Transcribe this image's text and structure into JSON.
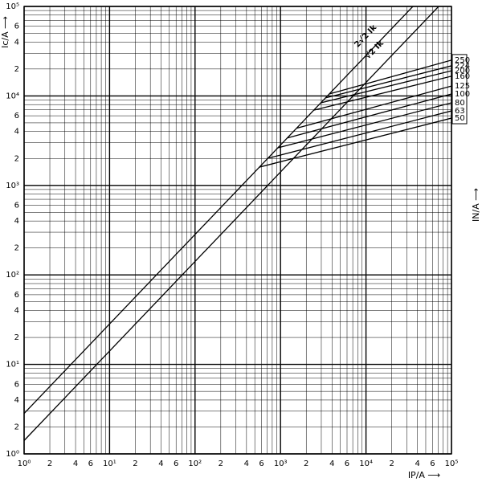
{
  "chart_data": {
    "type": "line",
    "log_x": true,
    "log_y": true,
    "grid": true,
    "minor_grid": true,
    "xlabel": "IP/A ⟶",
    "ylabel": "Ic/A ⟶",
    "y2label": "IN/A ⟶",
    "xlim": [
      1,
      100000
    ],
    "ylim": [
      1,
      100000
    ],
    "xticks": [
      {
        "value": 1,
        "label": "10⁰"
      },
      2,
      4,
      6,
      {
        "value": 10,
        "label": "10¹"
      },
      {
        "value": 20,
        "label": "2"
      },
      {
        "value": 40,
        "label": "4"
      },
      {
        "value": 60,
        "label": "6"
      },
      {
        "value": 100,
        "label": "10²"
      },
      {
        "value": 200,
        "label": "2"
      },
      {
        "value": 400,
        "label": "4"
      },
      {
        "value": 600,
        "label": "6"
      },
      {
        "value": 1000,
        "label": "10³"
      },
      {
        "value": 2000,
        "label": "2"
      },
      {
        "value": 4000,
        "label": "4"
      },
      {
        "value": 6000,
        "label": "6"
      },
      {
        "value": 10000,
        "label": "10⁴"
      },
      {
        "value": 20000,
        "label": "2"
      },
      {
        "value": 40000,
        "label": "4"
      },
      {
        "value": 60000,
        "label": "6"
      },
      {
        "value": 100000,
        "label": "10⁵"
      }
    ],
    "yticks": [
      {
        "value": 1,
        "label": "10⁰"
      },
      2,
      4,
      6,
      {
        "value": 10,
        "label": "10¹"
      },
      {
        "value": 20,
        "label": "2"
      },
      {
        "value": 40,
        "label": "4"
      },
      {
        "value": 60,
        "label": "6"
      },
      {
        "value": 100,
        "label": "10²"
      },
      {
        "value": 200,
        "label": "2"
      },
      {
        "value": 400,
        "label": "4"
      },
      {
        "value": 600,
        "label": "6"
      },
      {
        "value": 1000,
        "label": "10³"
      },
      {
        "value": 2000,
        "label": "2"
      },
      {
        "value": 4000,
        "label": "4"
      },
      {
        "value": 6000,
        "label": "6"
      },
      {
        "value": 10000,
        "label": "10⁴"
      },
      {
        "value": 20000,
        "label": "2"
      },
      {
        "value": 40000,
        "label": "4"
      },
      {
        "value": 60000,
        "label": "6"
      },
      {
        "value": 100000,
        "label": "10⁵"
      }
    ],
    "color": "#000000",
    "reference_lines": [
      {
        "name": "2√2 Ik",
        "x": [
          1,
          35355
        ],
        "values": [
          2.83,
          100000
        ]
      },
      {
        "name": "√2 Ik",
        "x": [
          1,
          70711
        ],
        "values": [
          1.41,
          100000
        ]
      }
    ],
    "series": [
      {
        "name": "250",
        "x": [
          3710,
          100000
        ],
        "values": [
          10500,
          25100
        ]
      },
      {
        "name": "224",
        "x": [
          3360,
          100000
        ],
        "values": [
          9500,
          21700
        ]
      },
      {
        "name": "200",
        "x": [
          2960,
          100000
        ],
        "values": [
          8370,
          19100
        ]
      },
      {
        "name": "160",
        "x": [
          2450,
          100000
        ],
        "values": [
          6940,
          16600
        ]
      },
      {
        "name": "125",
        "x": [
          1540,
          100000
        ],
        "values": [
          4350,
          12900
        ]
      },
      {
        "name": "100",
        "x": [
          1200,
          100000
        ],
        "values": [
          3390,
          10500
        ]
      },
      {
        "name": "80",
        "x": [
          930,
          100000
        ],
        "values": [
          2630,
          8370
        ]
      },
      {
        "name": "63",
        "x": [
          700,
          100000
        ],
        "values": [
          2000,
          6800
        ]
      },
      {
        "name": "50",
        "x": [
          565,
          100000
        ],
        "values": [
          1600,
          5650
        ]
      }
    ]
  }
}
